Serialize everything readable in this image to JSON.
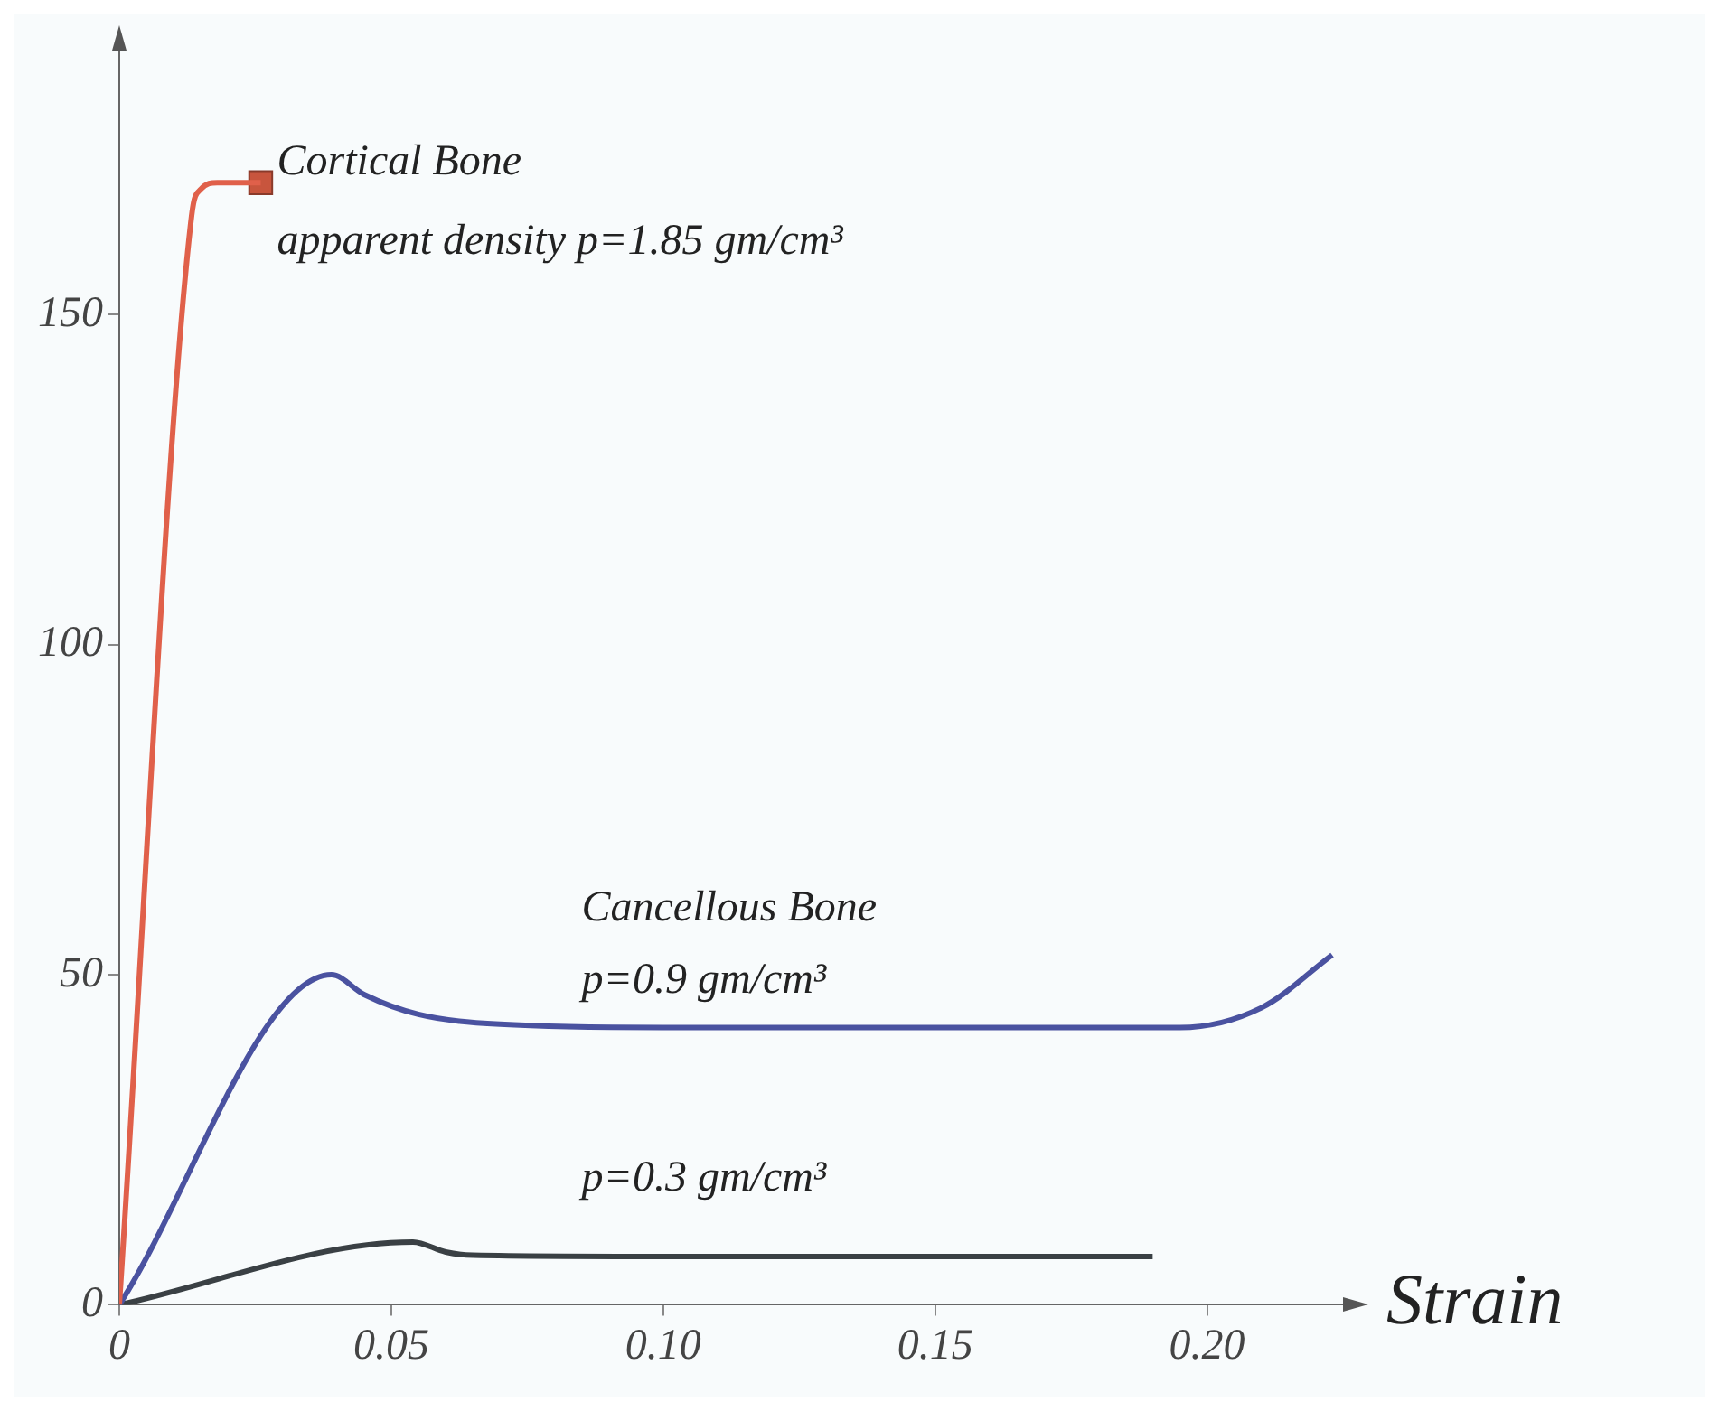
{
  "chart_data": {
    "type": "line",
    "xlabel": "Strain",
    "xlim": [
      0,
      0.225
    ],
    "ylim": [
      0,
      190
    ],
    "xticks": [
      0,
      {
        "value": 0.05,
        "label": "0.05"
      },
      {
        "value": 0.1,
        "label": "0.10"
      },
      {
        "value": 0.15,
        "label": "0.15"
      },
      {
        "value": 0.2,
        "label": "0.20"
      }
    ],
    "yticks": [
      0,
      50,
      100,
      150
    ],
    "grid": false,
    "legend": false,
    "line_style": "solid",
    "series": [
      {
        "color": "#e0604a",
        "x": [
          0,
          0.0133,
          0.015,
          0.018,
          0.026
        ],
        "values": [
          0,
          165,
          169,
          170,
          170
        ]
      },
      {
        "type": "scatter",
        "marker": "square",
        "color": "#c8553d",
        "x": [
          0.026
        ],
        "values": [
          170
        ]
      },
      {
        "color": "#4a52a0",
        "x": [
          0,
          0.039,
          0.045,
          0.055,
          0.07,
          0.1,
          0.15,
          0.195,
          0.21,
          0.223
        ],
        "values": [
          0,
          50,
          47,
          44,
          42.5,
          42,
          42,
          42,
          45,
          53
        ]
      },
      {
        "color": "#3a4044",
        "x": [
          0,
          0.054,
          0.06,
          0.065,
          0.1,
          0.15,
          0.19
        ],
        "values": [
          0,
          9.5,
          8,
          7.5,
          7.3,
          7.3,
          7.3
        ]
      }
    ],
    "annotations": [
      "Cortical Bone",
      "apparent density p=1.85 gm/cm³",
      "Cancellous Bone",
      "p=0.9 gm/cm³",
      "p=0.3 gm/cm³"
    ]
  }
}
